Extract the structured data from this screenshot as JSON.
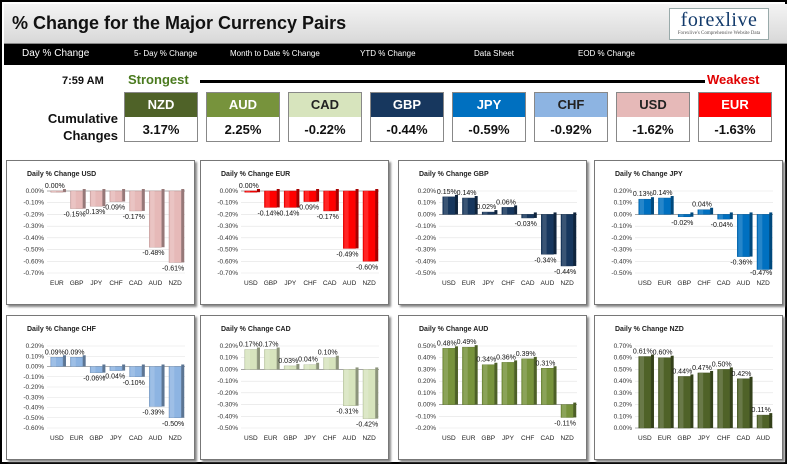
{
  "header": {
    "title": "% Change for the Major Currency Pairs",
    "logo_text": "forexlive",
    "logo_tagline": "Forexlive's Comprehensive Website Data"
  },
  "nav": {
    "items": [
      "Day % Change",
      "5- Day % Change",
      "Month to Date % Change",
      "YTD % Change",
      "Data Sheet",
      "EOD % Change"
    ]
  },
  "summary": {
    "time": "7:59 AM",
    "strongest_label": "Strongest",
    "weakest_label": "Weakest",
    "row_label": "Cumulative Changes",
    "currencies": [
      {
        "name": "NZD",
        "value": "3.17%",
        "color": "#4f6228"
      },
      {
        "name": "AUD",
        "value": "2.25%",
        "color": "#77933c"
      },
      {
        "name": "CAD",
        "value": "-0.22%",
        "color": "#d7e4bd"
      },
      {
        "name": "GBP",
        "value": "-0.44%",
        "color": "#17375e"
      },
      {
        "name": "JPY",
        "value": "-0.59%",
        "color": "#0070c0"
      },
      {
        "name": "CHF",
        "value": "-0.92%",
        "color": "#8db4e2"
      },
      {
        "name": "USD",
        "value": "-1.62%",
        "color": "#e6b9b8"
      },
      {
        "name": "EUR",
        "value": "-1.63%",
        "color": "#ff0000"
      }
    ]
  },
  "chart_data": [
    {
      "type": "bar",
      "title": "Daily % Change USD",
      "categories": [
        "EUR",
        "GBP",
        "JPY",
        "CHF",
        "CAD",
        "AUD",
        "NZD"
      ],
      "values": [
        0.0,
        -0.15,
        -0.13,
        -0.09,
        -0.17,
        -0.48,
        -0.61
      ],
      "labels": [
        "0.00%",
        "-0.15%",
        "-0.13%",
        "-0.09%",
        "-0.17%",
        "-0.48%",
        "-0.61%"
      ],
      "ylim": [
        -0.7,
        0.0
      ],
      "ticks": [
        "0.00%",
        "-0.10%",
        "-0.20%",
        "-0.30%",
        "-0.40%",
        "-0.50%",
        "-0.60%",
        "-0.70%"
      ],
      "color": "#e6b9b8"
    },
    {
      "type": "bar",
      "title": "Daily % Change EUR",
      "categories": [
        "USD",
        "GBP",
        "JPY",
        "CHF",
        "CAD",
        "AUD",
        "NZD"
      ],
      "values": [
        0.0,
        -0.14,
        -0.14,
        -0.09,
        -0.17,
        -0.49,
        -0.6
      ],
      "labels": [
        "0.00%",
        "-0.14%",
        "-0.14%",
        "-0.09%",
        "-0.17%",
        "-0.49%",
        "-0.60%"
      ],
      "ylim": [
        -0.7,
        0.0
      ],
      "ticks": [
        "0.00%",
        "-0.10%",
        "-0.20%",
        "-0.30%",
        "-0.40%",
        "-0.50%",
        "-0.60%",
        "-0.70%"
      ],
      "color": "#ff0000"
    },
    {
      "type": "bar",
      "title": "Daily % Change GBP",
      "categories": [
        "USD",
        "EUR",
        "JPY",
        "CHF",
        "CAD",
        "AUD",
        "NZD"
      ],
      "values": [
        0.15,
        0.14,
        0.02,
        0.06,
        -0.03,
        -0.34,
        -0.44
      ],
      "labels": [
        "0.15%",
        "0.14%",
        "0.02%",
        "0.06%",
        "-0.03%",
        "-0.34%",
        "-0.44%"
      ],
      "ylim": [
        -0.5,
        0.2
      ],
      "ticks": [
        "0.20%",
        "0.10%",
        "0.00%",
        "-0.10%",
        "-0.20%",
        "-0.30%",
        "-0.40%",
        "-0.50%"
      ],
      "color": "#17375e"
    },
    {
      "type": "bar",
      "title": "Daily % Change JPY",
      "categories": [
        "USD",
        "EUR",
        "GBP",
        "CHF",
        "CAD",
        "AUD",
        "NZD"
      ],
      "values": [
        0.13,
        0.14,
        -0.02,
        0.04,
        -0.04,
        -0.36,
        -0.47
      ],
      "labels": [
        "0.13%",
        "0.14%",
        "-0.02%",
        "0.04%",
        "-0.04%",
        "-0.36%",
        "-0.47%"
      ],
      "ylim": [
        -0.5,
        0.2
      ],
      "ticks": [
        "0.20%",
        "0.10%",
        "0.00%",
        "-0.10%",
        "-0.20%",
        "-0.30%",
        "-0.40%",
        "-0.50%"
      ],
      "color": "#0070c0"
    },
    {
      "type": "bar",
      "title": "Daily % Change CHF",
      "categories": [
        "USD",
        "EUR",
        "GBP",
        "JPY",
        "CAD",
        "AUD",
        "NZD"
      ],
      "values": [
        0.09,
        0.09,
        -0.06,
        -0.04,
        -0.1,
        -0.39,
        -0.5
      ],
      "labels": [
        "0.09%",
        "0.09%",
        "-0.06%",
        "-0.04%",
        "-0.10%",
        "-0.39%",
        "-0.50%"
      ],
      "ylim": [
        -0.6,
        0.2
      ],
      "ticks": [
        "0.20%",
        "0.10%",
        "0.00%",
        "-0.10%",
        "-0.20%",
        "-0.30%",
        "-0.40%",
        "-0.50%",
        "-0.60%"
      ],
      "color": "#8db4e2"
    },
    {
      "type": "bar",
      "title": "Daily % Change CAD",
      "categories": [
        "USD",
        "EUR",
        "GBP",
        "JPY",
        "CHF",
        "AUD",
        "NZD"
      ],
      "values": [
        0.17,
        0.17,
        0.03,
        0.04,
        0.1,
        -0.31,
        -0.42
      ],
      "labels": [
        "0.17%",
        "0.17%",
        "0.03%",
        "0.04%",
        "0.10%",
        "-0.31%",
        "-0.42%"
      ],
      "ylim": [
        -0.5,
        0.2
      ],
      "ticks": [
        "0.20%",
        "0.10%",
        "0.00%",
        "-0.10%",
        "-0.20%",
        "-0.30%",
        "-0.40%",
        "-0.50%"
      ],
      "color": "#d7e4bd"
    },
    {
      "type": "bar",
      "title": "Daily % Change AUD",
      "categories": [
        "USD",
        "EUR",
        "GBP",
        "JPY",
        "CHF",
        "CAD",
        "NZD"
      ],
      "values": [
        0.48,
        0.49,
        0.34,
        0.36,
        0.39,
        0.31,
        -0.11
      ],
      "labels": [
        "0.48%",
        "0.49%",
        "0.34%",
        "0.36%",
        "0.39%",
        "0.31%",
        "-0.11%"
      ],
      "ylim": [
        -0.2,
        0.5
      ],
      "ticks": [
        "0.50%",
        "0.40%",
        "0.30%",
        "0.20%",
        "0.10%",
        "0.00%",
        "-0.10%",
        "-0.20%"
      ],
      "color": "#77933c"
    },
    {
      "type": "bar",
      "title": "Daily % Change NZD",
      "categories": [
        "USD",
        "EUR",
        "GBP",
        "JPY",
        "CHF",
        "CAD",
        "AUD"
      ],
      "values": [
        0.61,
        0.6,
        0.44,
        0.47,
        0.5,
        0.42,
        0.11
      ],
      "labels": [
        "0.61%",
        "0.60%",
        "0.44%",
        "0.47%",
        "0.50%",
        "0.42%",
        "0.11%"
      ],
      "ylim": [
        0.0,
        0.7
      ],
      "ticks": [
        "0.70%",
        "0.60%",
        "0.50%",
        "0.40%",
        "0.30%",
        "0.20%",
        "0.10%",
        "0.00%"
      ],
      "color": "#4f6228"
    }
  ]
}
